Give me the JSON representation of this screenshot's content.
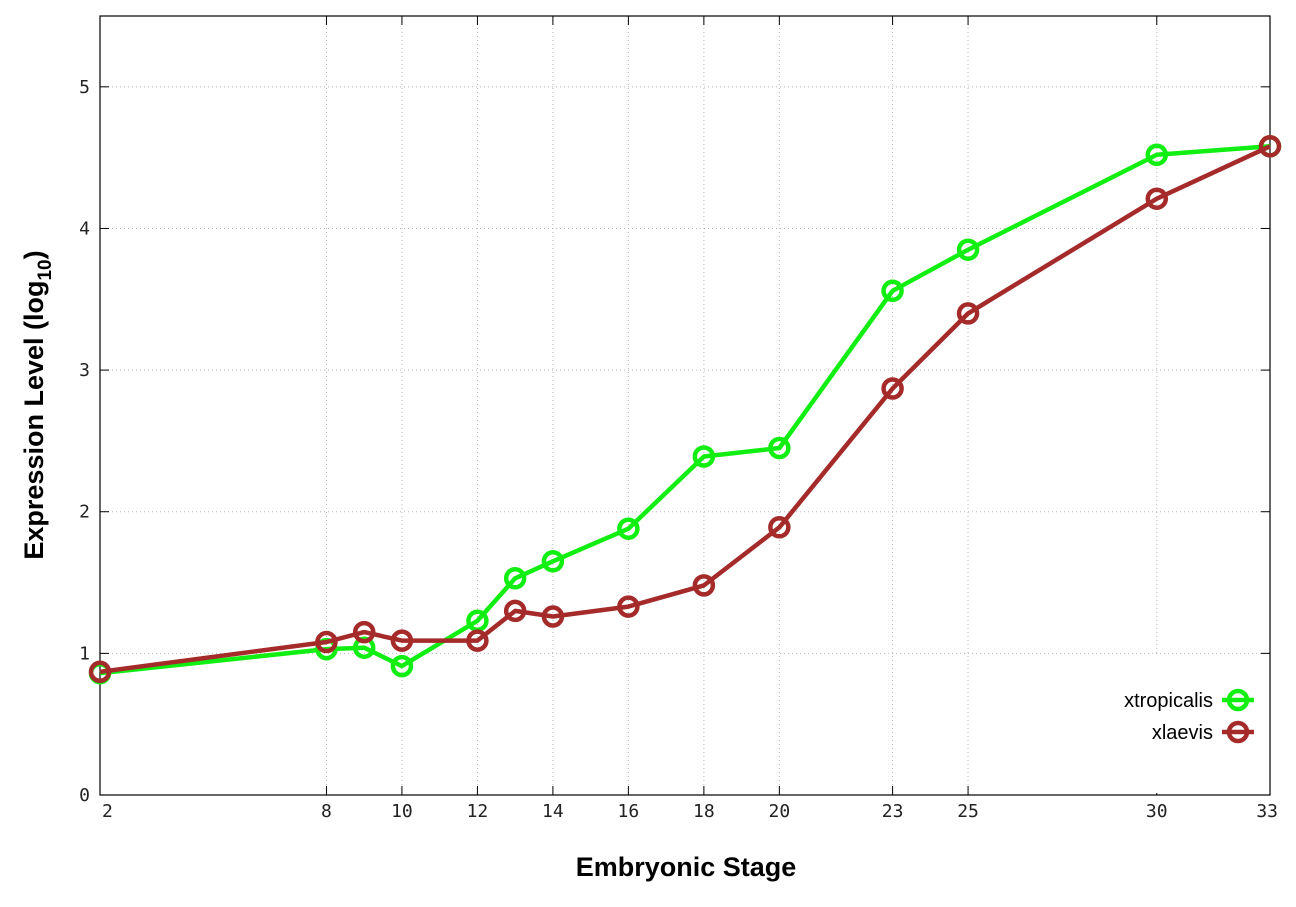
{
  "chart_data": {
    "type": "line",
    "title": "",
    "xlabel": "Embryonic Stage",
    "ylabel_main": "Expression Level (log",
    "ylabel_sub": "10",
    "ylabel_end": ")",
    "xlim": [
      2,
      33
    ],
    "ylim": [
      0,
      5.5
    ],
    "grid": true,
    "legend_position": "bottom-right",
    "x_ticks": [
      2,
      8,
      10,
      12,
      14,
      16,
      18,
      20,
      23,
      25,
      30,
      33
    ],
    "x_tick_labels": [
      "2",
      "8",
      "10",
      "12",
      "14",
      "16",
      "18",
      "20",
      "23",
      "25",
      "30",
      "33"
    ],
    "y_ticks": [
      0,
      1,
      2,
      3,
      4,
      5
    ],
    "y_tick_labels": [
      "0",
      "1",
      "2",
      "3",
      "4",
      "5"
    ],
    "x": [
      2,
      8,
      9,
      10,
      12,
      13,
      14,
      16,
      18,
      20,
      23,
      25,
      30,
      33
    ],
    "series": [
      {
        "name": "xtropicalis",
        "color": "#11ee11",
        "values": [
          0.86,
          1.03,
          1.04,
          0.91,
          1.23,
          1.53,
          1.65,
          1.88,
          2.39,
          2.45,
          3.56,
          3.85,
          4.52,
          4.58
        ]
      },
      {
        "name": "xlaevis",
        "color": "#a52a2a",
        "values": [
          0.87,
          1.08,
          1.15,
          1.09,
          1.09,
          1.3,
          1.26,
          1.33,
          1.48,
          1.89,
          2.87,
          3.4,
          4.21,
          4.58
        ]
      }
    ]
  }
}
